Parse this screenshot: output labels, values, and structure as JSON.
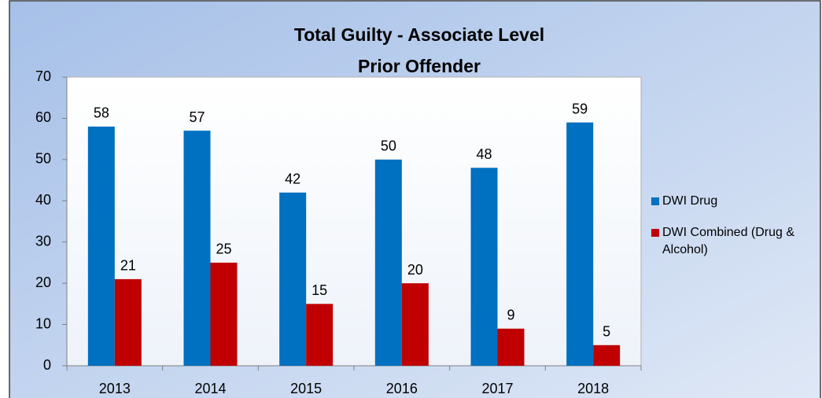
{
  "chart_data": {
    "type": "grouped-bar",
    "title": "Total Guilty - Associate Level",
    "subtitle": "Prior Offender",
    "categories": [
      "2013",
      "2014",
      "2015",
      "2016",
      "2017",
      "2018"
    ],
    "series": [
      {
        "name": "DWI Drug",
        "color": "#0070c0",
        "values": [
          58,
          57,
          42,
          50,
          48,
          59
        ]
      },
      {
        "name": "DWI Combined (Drug & Alcohol)",
        "color": "#c00000",
        "values": [
          21,
          25,
          15,
          20,
          9,
          5
        ]
      }
    ],
    "ylim": [
      0,
      70
    ],
    "yticks": [
      0,
      10,
      20,
      30,
      40,
      50,
      60,
      70
    ],
    "legend": "right"
  }
}
